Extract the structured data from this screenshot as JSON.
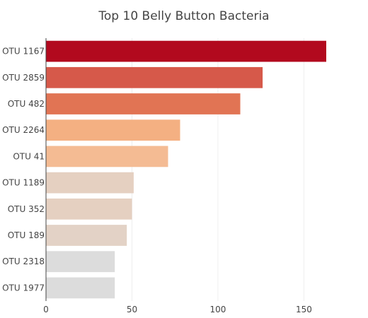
{
  "chart_data": {
    "type": "bar",
    "orientation": "horizontal",
    "title": "Top 10 Belly Button Bacteria",
    "xlabel": "",
    "ylabel": "",
    "categories": [
      "OTU 1167",
      "OTU 2859",
      "OTU 482",
      "OTU 2264",
      "OTU 41",
      "OTU 1189",
      "OTU 352",
      "OTU 189",
      "OTU 2318",
      "OTU 1977"
    ],
    "values": [
      163,
      126,
      113,
      78,
      71,
      51,
      50,
      47,
      40,
      40
    ],
    "colors": [
      "#b2091e",
      "#d6594a",
      "#e17454",
      "#f4b082",
      "#f4bb93",
      "#e5d0c1",
      "#e5d0c1",
      "#e3d2c6",
      "#dcdcdc",
      "#dcdcdc"
    ],
    "xlim": [
      0,
      170
    ],
    "x_ticks": [
      0,
      50,
      100,
      150
    ],
    "grid": "vertical",
    "legend": "none"
  }
}
